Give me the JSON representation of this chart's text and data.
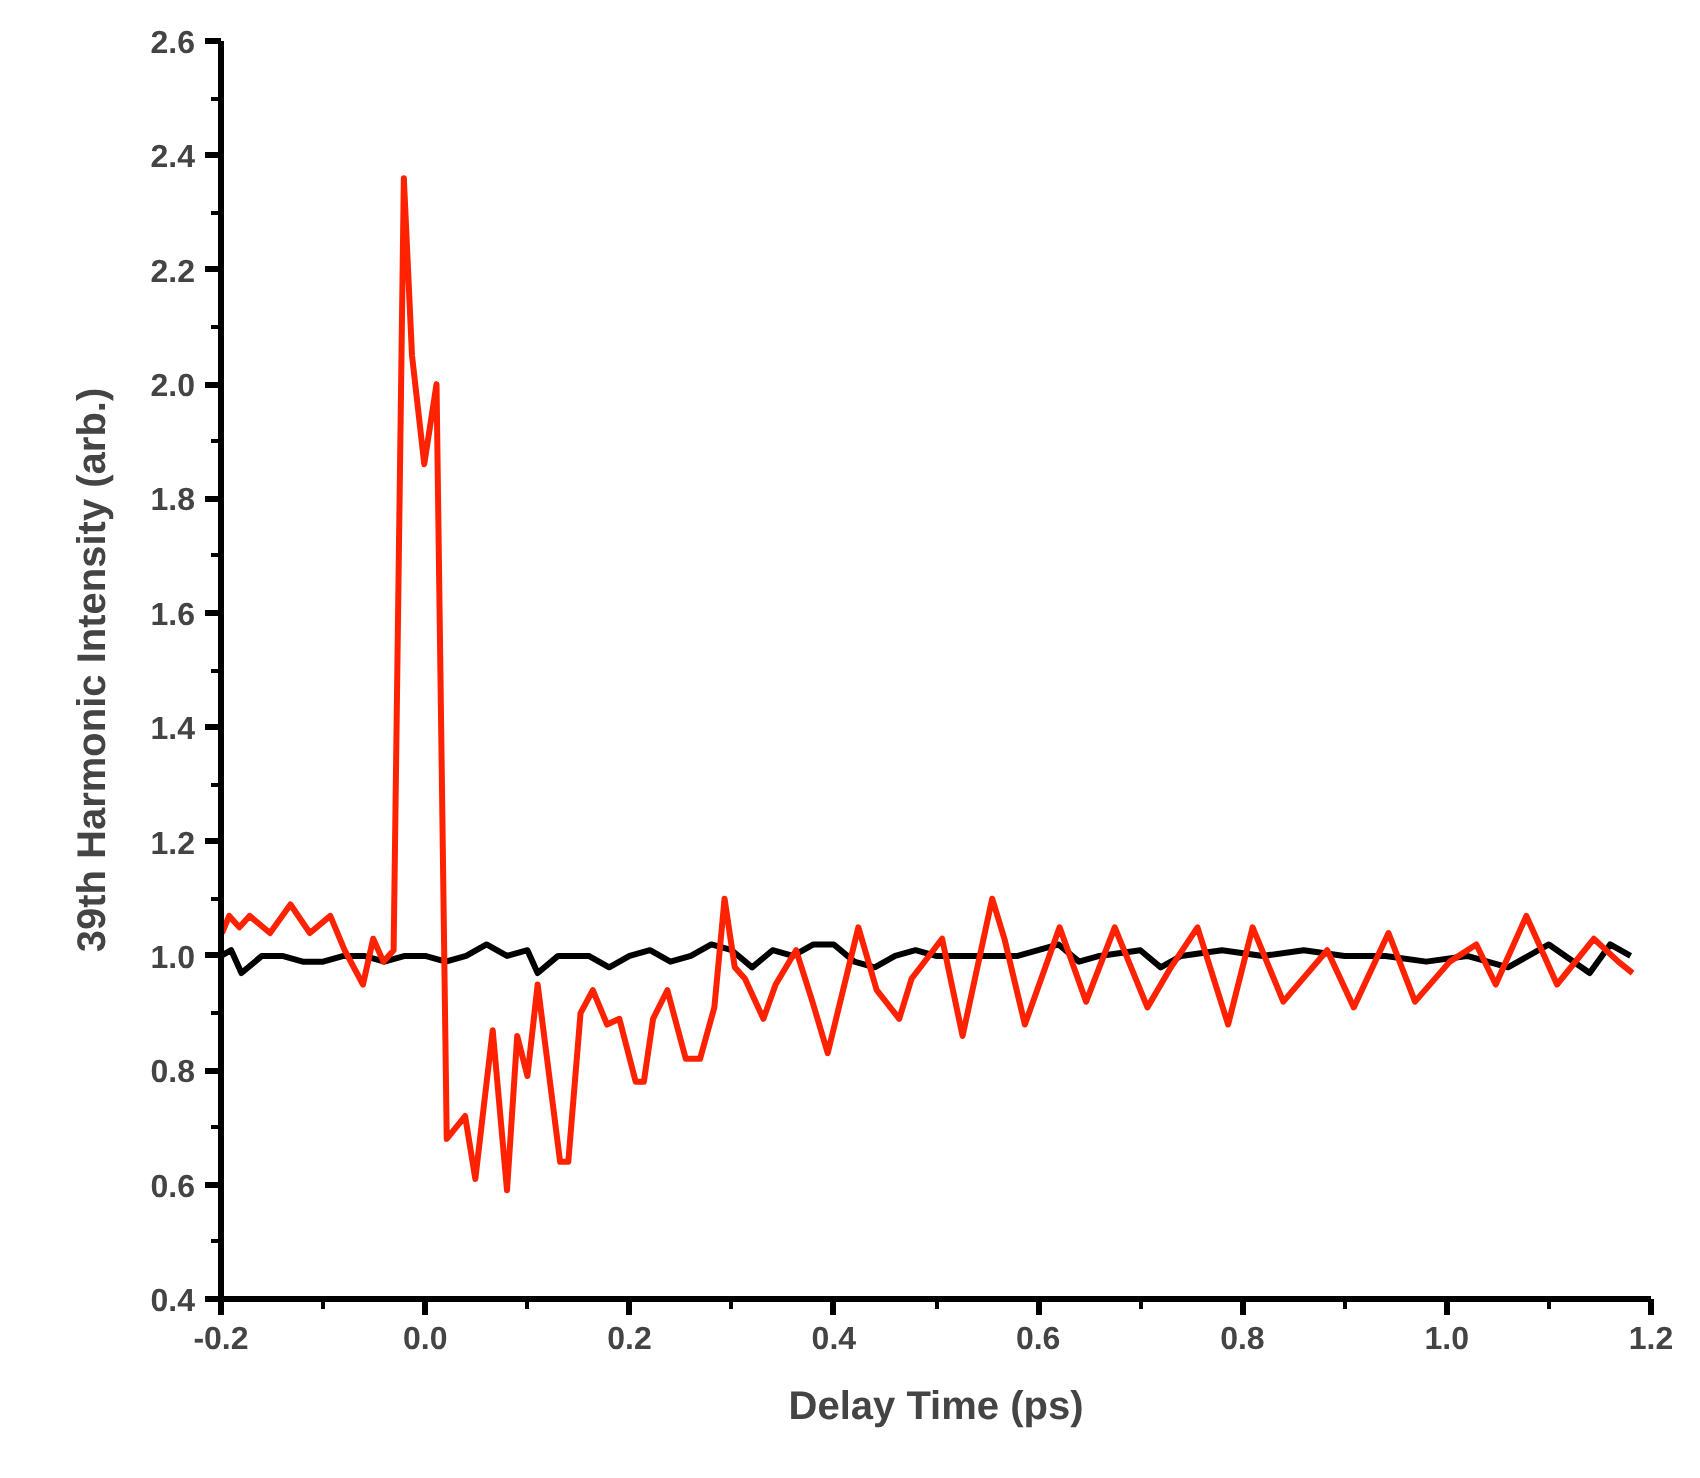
{
  "chart_data": {
    "type": "line",
    "xlabel": "Delay Time (ps)",
    "ylabel": "39th Harmonic Intensity (arb.)",
    "xlim": [
      -0.2,
      1.2
    ],
    "ylim": [
      0.4,
      2.6
    ],
    "xticks": [
      {
        "value": -0.2,
        "label": "-0.2"
      },
      {
        "value": -0.1,
        "label": null
      },
      {
        "value": 0,
        "label": "0.0"
      },
      {
        "value": 0.1,
        "label": null
      },
      {
        "value": 0.2,
        "label": "0.2"
      },
      {
        "value": 0.3,
        "label": null
      },
      {
        "value": 0.4,
        "label": "0.4"
      },
      {
        "value": 0.5,
        "label": null
      },
      {
        "value": 0.6,
        "label": "0.6"
      },
      {
        "value": 0.7,
        "label": null
      },
      {
        "value": 0.8,
        "label": "0.8"
      },
      {
        "value": 0.9,
        "label": null
      },
      {
        "value": 1.0,
        "label": "1.0"
      },
      {
        "value": 1.1,
        "label": null
      },
      {
        "value": 1.2,
        "label": "1.2"
      }
    ],
    "yticks": [
      {
        "value": 0.4,
        "label": "0.4"
      },
      {
        "value": 0.5,
        "label": null
      },
      {
        "value": 0.6,
        "label": "0.6"
      },
      {
        "value": 0.7,
        "label": null
      },
      {
        "value": 0.8,
        "label": "0.8"
      },
      {
        "value": 0.9,
        "label": null
      },
      {
        "value": 1.0,
        "label": "1.0"
      },
      {
        "value": 1.1,
        "label": null
      },
      {
        "value": 1.2,
        "label": "1.2"
      },
      {
        "value": 1.3,
        "label": null
      },
      {
        "value": 1.4,
        "label": "1.4"
      },
      {
        "value": 1.5,
        "label": null
      },
      {
        "value": 1.6,
        "label": "1.6"
      },
      {
        "value": 1.7,
        "label": null
      },
      {
        "value": 1.8,
        "label": "1.8"
      },
      {
        "value": 1.9,
        "label": null
      },
      {
        "value": 2.0,
        "label": "2.0"
      },
      {
        "value": 2.1,
        "label": null
      },
      {
        "value": 2.2,
        "label": "2.2"
      },
      {
        "value": 2.3,
        "label": null
      },
      {
        "value": 2.4,
        "label": "2.4"
      },
      {
        "value": 2.5,
        "label": null
      },
      {
        "value": 2.6,
        "label": "2.6"
      }
    ],
    "grid": false,
    "marker": "none",
    "line_style": "solid",
    "series": [
      {
        "color": "#000000",
        "x": [
          -0.2,
          -0.19,
          -0.18,
          -0.16,
          -0.14,
          -0.12,
          -0.1,
          -0.08,
          -0.06,
          -0.04,
          -0.02,
          0.0,
          0.02,
          0.04,
          0.06,
          0.08,
          0.1,
          0.11,
          0.13,
          0.16,
          0.18,
          0.2,
          0.22,
          0.24,
          0.26,
          0.28,
          0.3,
          0.32,
          0.34,
          0.36,
          0.38,
          0.4,
          0.42,
          0.44,
          0.46,
          0.48,
          0.5,
          0.54,
          0.58,
          0.62,
          0.64,
          0.66,
          0.7,
          0.72,
          0.74,
          0.78,
          0.82,
          0.86,
          0.9,
          0.94,
          0.98,
          1.02,
          1.06,
          1.1,
          1.14,
          1.16,
          1.18
        ],
        "values": [
          1.0,
          1.01,
          0.97,
          1.0,
          1.0,
          0.99,
          0.99,
          1.0,
          1.0,
          0.99,
          1.0,
          1.0,
          0.99,
          1.0,
          1.02,
          1.0,
          1.01,
          0.97,
          1.0,
          1.0,
          0.98,
          1.0,
          1.01,
          0.99,
          1.0,
          1.02,
          1.01,
          0.98,
          1.01,
          1.0,
          1.02,
          1.02,
          0.99,
          0.98,
          1.0,
          1.01,
          1.0,
          1.0,
          1.0,
          1.02,
          0.99,
          1.0,
          1.01,
          0.98,
          1.0,
          1.01,
          1.0,
          1.01,
          1.0,
          1.0,
          0.99,
          1.0,
          0.98,
          1.02,
          0.97,
          1.02,
          1.0
        ]
      },
      {
        "color": "#ff2200",
        "x": [
          -0.199,
          -0.192,
          -0.182,
          -0.172,
          -0.152,
          -0.132,
          -0.113,
          -0.093,
          -0.079,
          -0.061,
          -0.051,
          -0.041,
          -0.031,
          -0.021,
          -0.013,
          -0.001,
          0.011,
          0.021,
          0.039,
          0.049,
          0.066,
          0.08,
          0.09,
          0.1,
          0.11,
          0.132,
          0.14,
          0.152,
          0.164,
          0.178,
          0.19,
          0.206,
          0.214,
          0.223,
          0.237,
          0.255,
          0.269,
          0.283,
          0.293,
          0.303,
          0.313,
          0.331,
          0.343,
          0.363,
          0.379,
          0.394,
          0.424,
          0.442,
          0.464,
          0.476,
          0.506,
          0.526,
          0.555,
          0.567,
          0.587,
          0.621,
          0.647,
          0.675,
          0.707,
          0.73,
          0.756,
          0.786,
          0.81,
          0.84,
          0.883,
          0.909,
          0.943,
          0.969,
          1.003,
          1.029,
          1.048,
          1.078,
          1.108,
          1.144,
          1.168,
          1.182
        ],
        "values": [
          1.04,
          1.07,
          1.05,
          1.07,
          1.04,
          1.09,
          1.04,
          1.07,
          1.01,
          0.95,
          1.03,
          0.99,
          1.01,
          2.36,
          2.05,
          1.86,
          2.0,
          0.68,
          0.72,
          0.61,
          0.87,
          0.59,
          0.86,
          0.79,
          0.95,
          0.64,
          0.64,
          0.9,
          0.94,
          0.88,
          0.89,
          0.78,
          0.78,
          0.89,
          0.94,
          0.82,
          0.82,
          0.91,
          1.1,
          0.98,
          0.96,
          0.89,
          0.95,
          1.01,
          0.92,
          0.83,
          1.05,
          0.94,
          0.89,
          0.96,
          1.03,
          0.86,
          1.1,
          1.03,
          0.88,
          1.05,
          0.92,
          1.05,
          0.91,
          0.98,
          1.05,
          0.88,
          1.05,
          0.92,
          1.01,
          0.91,
          1.04,
          0.92,
          0.99,
          1.02,
          0.95,
          1.07,
          0.95,
          1.03,
          0.99,
          0.97
        ]
      }
    ]
  }
}
